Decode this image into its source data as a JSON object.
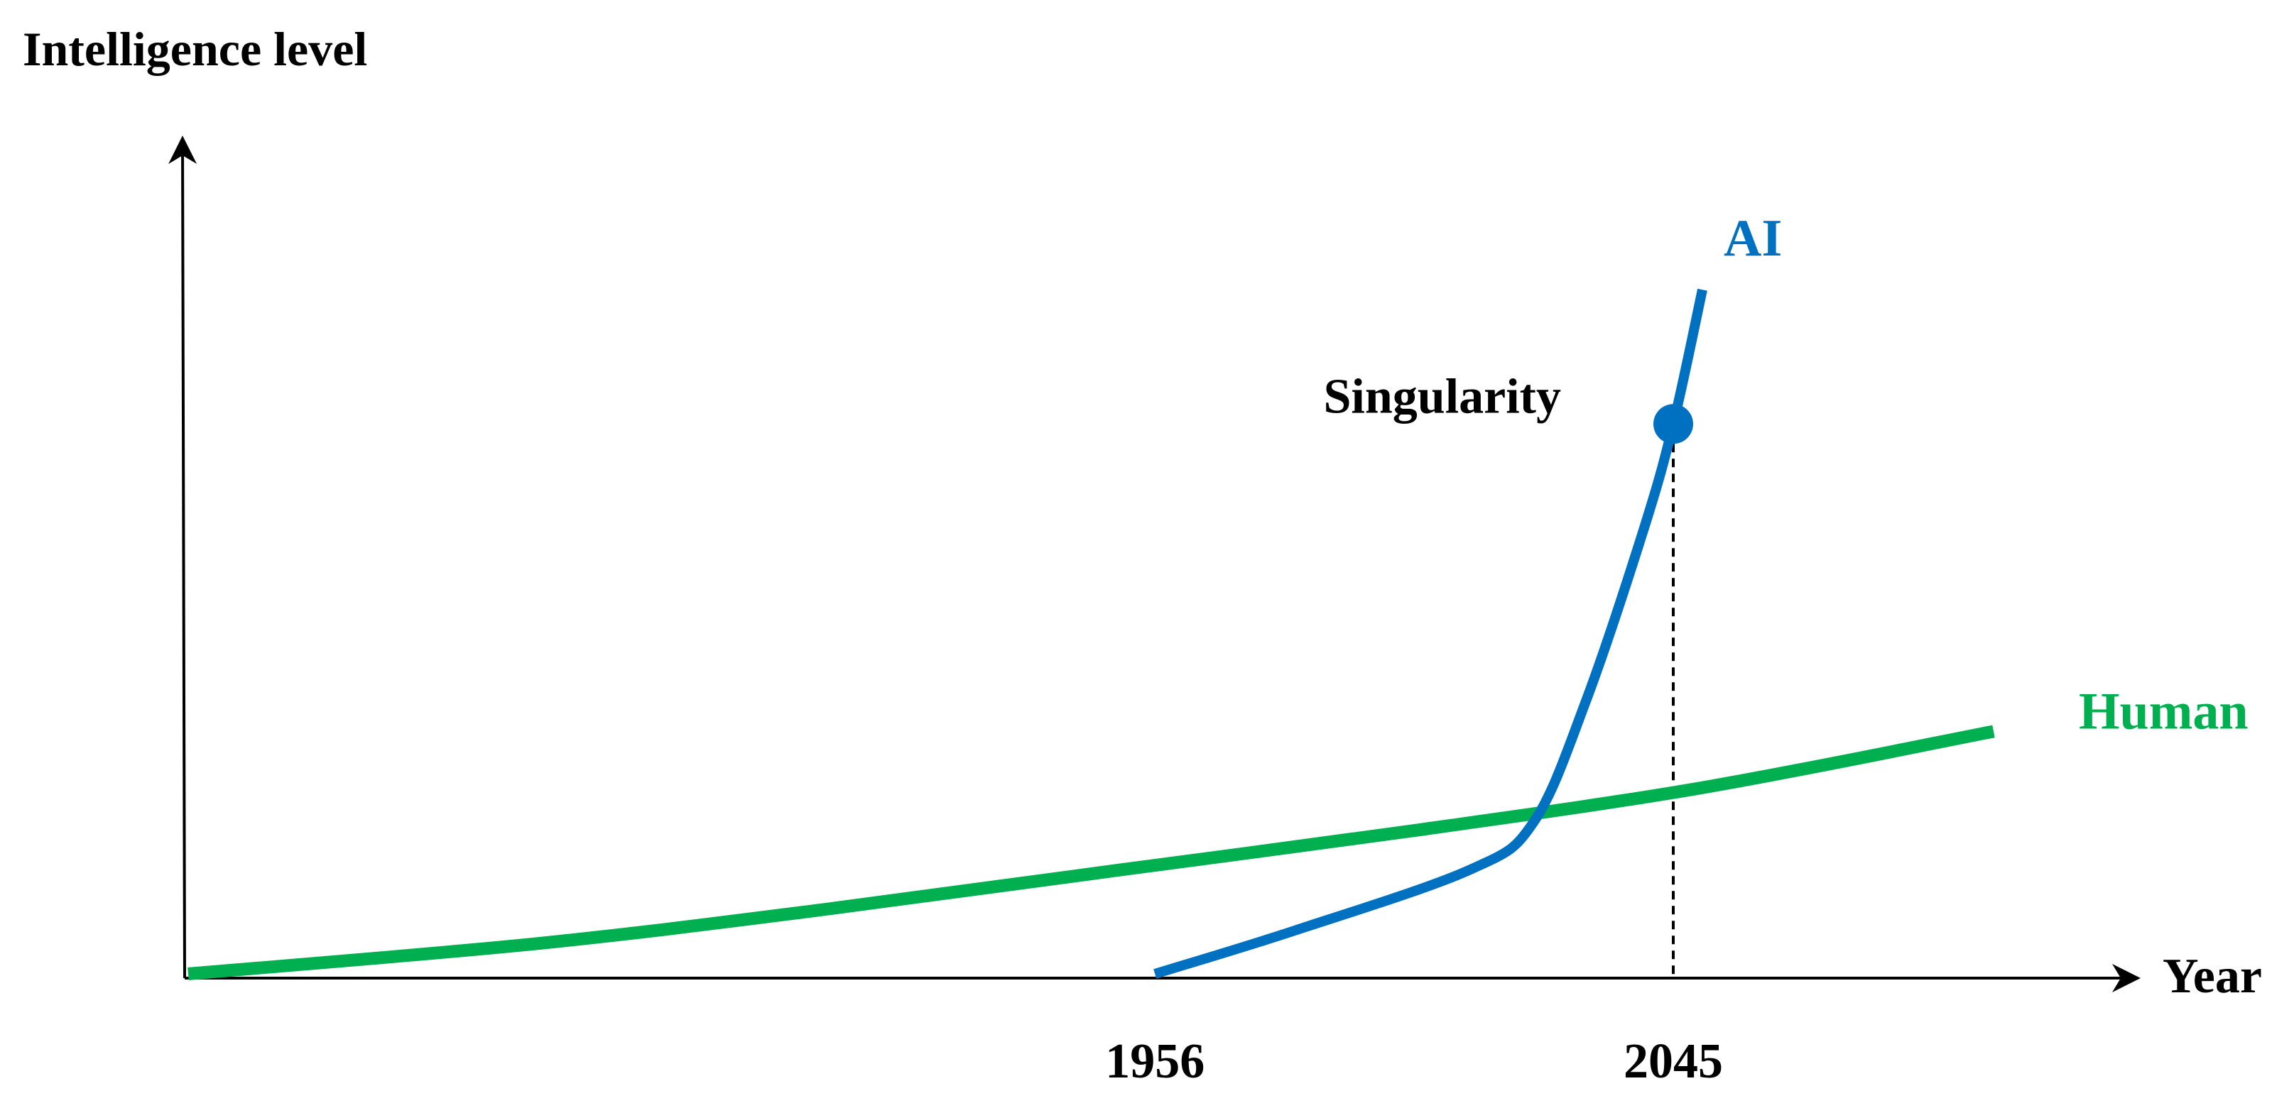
{
  "chart_data": {
    "type": "line",
    "title": "",
    "xlabel": "Year",
    "ylabel": "Intelligence level",
    "x_ticks": [
      {
        "label": "1956",
        "value": 1956
      },
      {
        "label": "2045",
        "value": 2045
      }
    ],
    "series": [
      {
        "name": "Human",
        "color": "#00b050",
        "x": [
          1790,
          1850,
          1900,
          1950,
          2000,
          2050,
          2100
        ],
        "y": [
          0,
          7,
          15,
          24,
          33,
          43,
          56
        ]
      },
      {
        "name": "AI",
        "color": "#0070c0",
        "x": [
          1956,
          1980,
          2010,
          2021,
          2030,
          2040,
          2045,
          2050
        ],
        "y": [
          0,
          10,
          24,
          35,
          63,
          103,
          127,
          158
        ]
      }
    ],
    "annotations": [
      {
        "label": "Singularity",
        "x": 2045,
        "y": 127,
        "color": "#0070c0"
      }
    ]
  }
}
